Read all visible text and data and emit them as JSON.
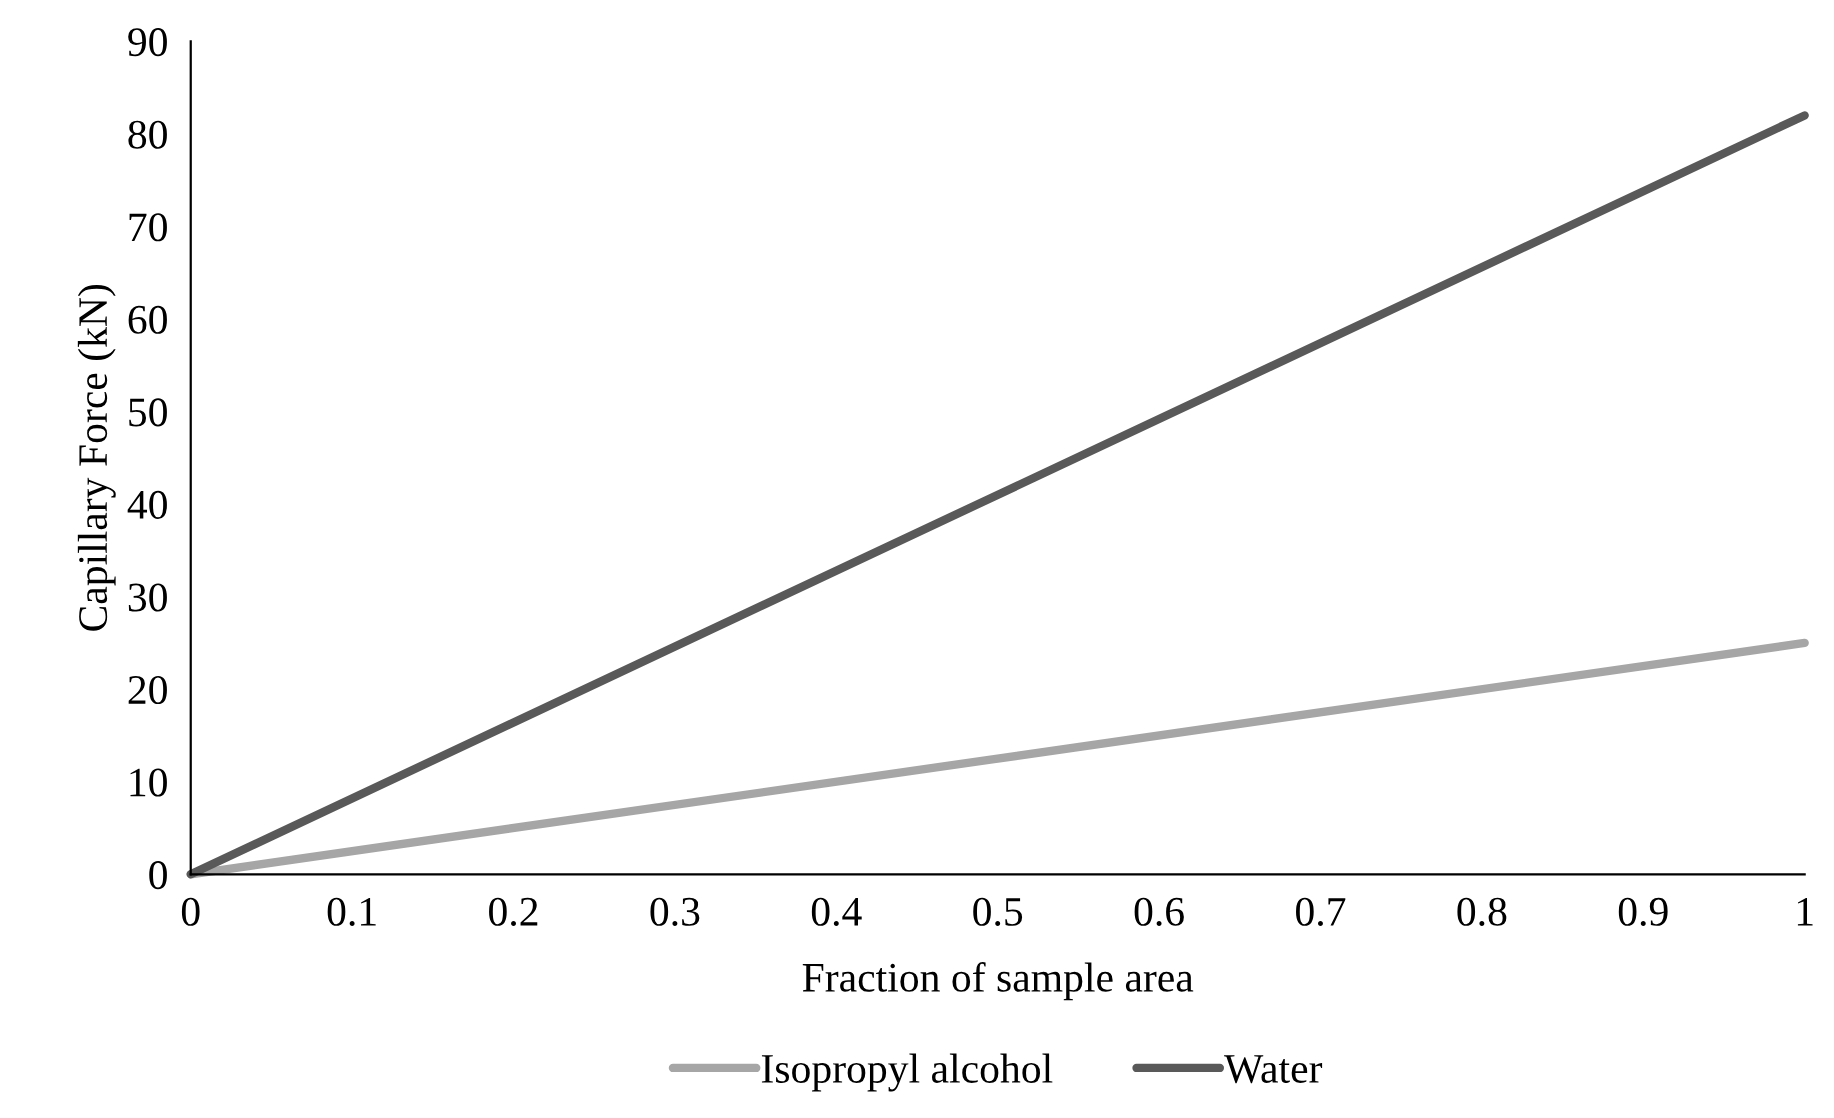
{
  "chart_data": {
    "type": "line",
    "xlabel": "Fraction of sample area",
    "ylabel": "Capillary Force (kN)",
    "xlim": [
      0,
      1
    ],
    "ylim": [
      0,
      90
    ],
    "xticks": [
      0,
      0.1,
      0.2,
      0.3,
      0.4,
      0.5,
      0.6,
      0.7,
      0.8,
      0.9,
      1
    ],
    "yticks": [
      0,
      10,
      20,
      30,
      40,
      50,
      60,
      70,
      80,
      90
    ],
    "x": [
      0,
      1
    ],
    "series": [
      {
        "name": "Isopropyl alcohol",
        "color": "#a6a6a6",
        "values": [
          0,
          25
        ]
      },
      {
        "name": "Water",
        "color": "#595959",
        "values": [
          0,
          82
        ]
      }
    ],
    "grid": false,
    "legend": "bottom",
    "marker": "none",
    "line_style": "solid"
  }
}
